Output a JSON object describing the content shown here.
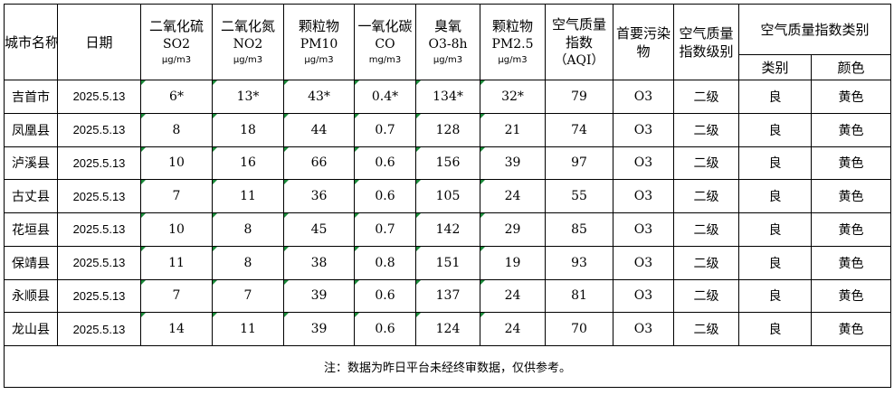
{
  "header": {
    "city": "城市名称",
    "date": "日期",
    "so2": {
      "name": "二氧化硫",
      "code": "SO2",
      "unit": "μg/m3"
    },
    "no2": {
      "name": "二氧化氮",
      "code": "NO2",
      "unit": "μg/m3"
    },
    "pm10": {
      "name": "颗粒物",
      "code": "PM10",
      "unit": "μg/m3"
    },
    "co": {
      "name": "一氧化碳",
      "code": "CO",
      "unit": "mg/m3"
    },
    "o3": {
      "name": "臭氧",
      "code": "O3-8h",
      "unit": "μg/m3"
    },
    "pm25": {
      "name": "颗粒物",
      "code": "PM2.5",
      "unit": "μg/m3"
    },
    "aqi": {
      "line1": "空气质量",
      "line2": "指数",
      "line3": "（AQI）"
    },
    "primary": {
      "line1": "首要污染",
      "line2": "物"
    },
    "level": {
      "line1": "空气质量",
      "line2": "指数级别"
    },
    "category_group": "空气质量指数类别",
    "category": "类别",
    "color": "颜色"
  },
  "rows": [
    {
      "city": "吉首市",
      "date": "2025.5.13",
      "so2": "6*",
      "no2": "13*",
      "pm10": "43*",
      "co": "0.4*",
      "o3": "134*",
      "pm25": "32*",
      "aqi": "79",
      "primary": "O3",
      "level": "二级",
      "category": "良",
      "color": "黄色"
    },
    {
      "city": "凤凰县",
      "date": "2025.5.13",
      "so2": "8",
      "no2": "18",
      "pm10": "44",
      "co": "0.7",
      "o3": "128",
      "pm25": "21",
      "aqi": "74",
      "primary": "O3",
      "level": "二级",
      "category": "良",
      "color": "黄色"
    },
    {
      "city": "泸溪县",
      "date": "2025.5.13",
      "so2": "10",
      "no2": "16",
      "pm10": "66",
      "co": "0.6",
      "o3": "156",
      "pm25": "39",
      "aqi": "97",
      "primary": "O3",
      "level": "二级",
      "category": "良",
      "color": "黄色"
    },
    {
      "city": "古丈县",
      "date": "2025.5.13",
      "so2": "7",
      "no2": "11",
      "pm10": "36",
      "co": "0.6",
      "o3": "105",
      "pm25": "24",
      "aqi": "55",
      "primary": "O3",
      "level": "二级",
      "category": "良",
      "color": "黄色"
    },
    {
      "city": "花垣县",
      "date": "2025.5.13",
      "so2": "10",
      "no2": "8",
      "pm10": "45",
      "co": "0.7",
      "o3": "142",
      "pm25": "29",
      "aqi": "85",
      "primary": "O3",
      "level": "二级",
      "category": "良",
      "color": "黄色"
    },
    {
      "city": "保靖县",
      "date": "2025.5.13",
      "so2": "11",
      "no2": "8",
      "pm10": "38",
      "co": "0.8",
      "o3": "151",
      "pm25": "19",
      "aqi": "93",
      "primary": "O3",
      "level": "二级",
      "category": "良",
      "color": "黄色"
    },
    {
      "city": "永顺县",
      "date": "2025.5.13",
      "so2": "7",
      "no2": "7",
      "pm10": "39",
      "co": "0.6",
      "o3": "137",
      "pm25": "24",
      "aqi": "81",
      "primary": "O3",
      "level": "二级",
      "category": "良",
      "color": "黄色"
    },
    {
      "city": "龙山县",
      "date": "2025.5.13",
      "so2": "14",
      "no2": "11",
      "pm10": "39",
      "co": "0.6",
      "o3": "124",
      "pm25": "24",
      "aqi": "70",
      "primary": "O3",
      "level": "二级",
      "category": "良",
      "color": "黄色"
    }
  ],
  "note": "注：数据为昨日平台未经终审数据，仅供参考。"
}
